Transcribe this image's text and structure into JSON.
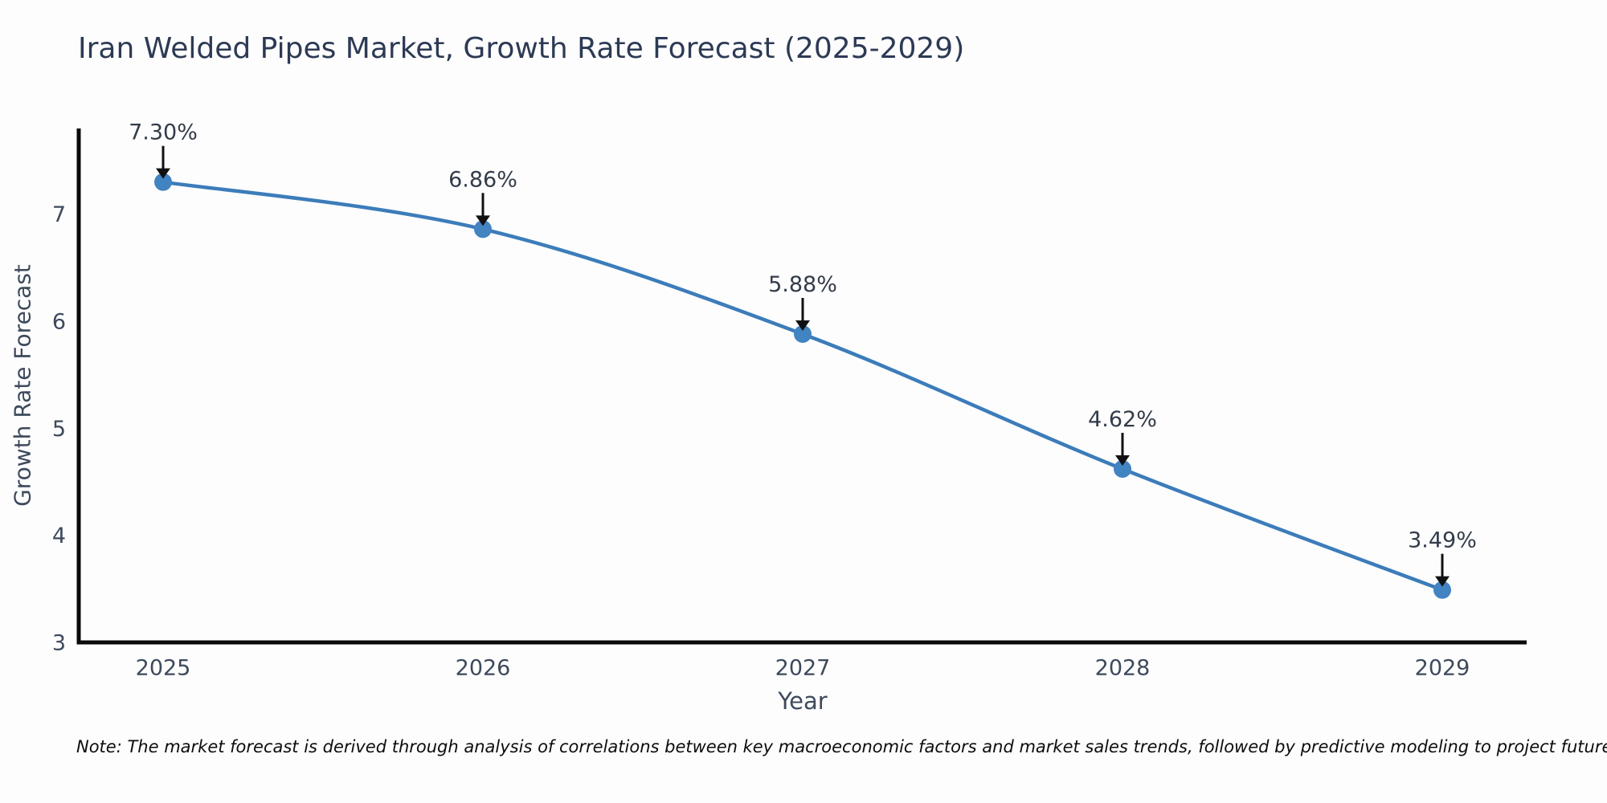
{
  "page": {
    "background": "#fdfdfd"
  },
  "note": "Note: The market forecast is derived through analysis of correlations between key macroeconomic factors and market sales trends, followed by predictive modeling to project future sales.",
  "chart_data": {
    "type": "line",
    "title": "Iran Welded Pipes Market, Growth Rate Forecast (2025-2029)",
    "xlabel": "Year",
    "ylabel": "Growth Rate Forecast",
    "categories": [
      "2025",
      "2026",
      "2027",
      "2028",
      "2029"
    ],
    "series": [
      {
        "name": "Growth Rate Forecast",
        "values": [
          7.3,
          6.86,
          5.88,
          4.62,
          3.49
        ]
      }
    ],
    "point_labels": [
      "7.30%",
      "6.86%",
      "5.88%",
      "4.62%",
      "3.49%"
    ],
    "yticks": [
      3,
      4,
      5,
      6,
      7
    ],
    "ylim": [
      3,
      7.8
    ],
    "grid": false,
    "legend_position": "none",
    "line_style": "spline",
    "marker": "circle",
    "annotation_style": "value label with downward black arrow onto each marker",
    "colors": {
      "line": "#3c7cba",
      "marker": "#4283c2",
      "arrow": "#111111",
      "axis": "#0a0a0a",
      "tick": "#3e4a5c",
      "label": "#333c4a",
      "title": "#2d3a55",
      "note": "#0d0d0d"
    }
  }
}
